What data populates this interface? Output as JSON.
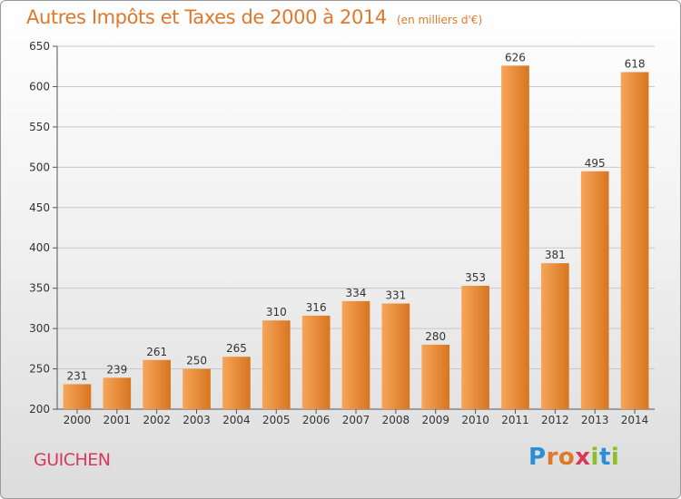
{
  "title": "Autres Impôts et Taxes de 2000 à 2014",
  "unit": "(en milliers d'€)",
  "city": "GUICHEN",
  "logo": {
    "text": "Proxiti",
    "letters": [
      {
        "char": "P",
        "color": "#2a8fd6"
      },
      {
        "char": "r",
        "color": "#e0782a"
      },
      {
        "char": "o",
        "color": "#e0782a"
      },
      {
        "char": "x",
        "color": "#d63a5a"
      },
      {
        "char": "i",
        "color": "#8cbf26"
      },
      {
        "char": "t",
        "color": "#2a8fd6"
      },
      {
        "char": "i",
        "color": "#8cbf26"
      }
    ]
  },
  "colors": {
    "bar_light": "#f6a55a",
    "bar_dark": "#d8751f",
    "title": "#e0782a",
    "city": "#d63a5a",
    "grid": "#c8c8c8"
  },
  "chart_data": {
    "type": "bar",
    "categories": [
      "2000",
      "2001",
      "2002",
      "2003",
      "2004",
      "2005",
      "2006",
      "2007",
      "2008",
      "2009",
      "2010",
      "2011",
      "2012",
      "2013",
      "2014"
    ],
    "values": [
      231,
      239,
      261,
      250,
      265,
      310,
      316,
      334,
      331,
      280,
      353,
      626,
      381,
      495,
      618
    ],
    "yticks": [
      200,
      250,
      300,
      350,
      400,
      450,
      500,
      550,
      600,
      650
    ],
    "ylim": [
      200,
      650
    ],
    "grid": true,
    "data_labels": true
  }
}
